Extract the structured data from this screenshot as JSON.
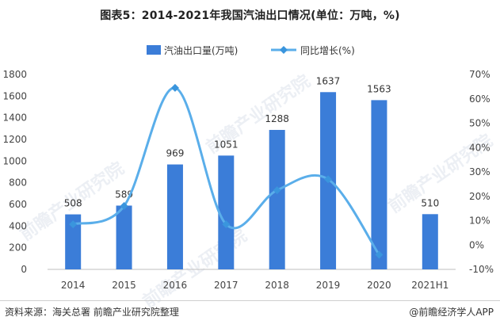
{
  "title": "图表5：2014-2021年我国汽油出口情况(单位：万吨，%)",
  "source": "资料来源：海关总署 前瞻产业研究院整理",
  "brand": "@前瞻经济学人APP",
  "watermark": "前瞻产业研究院",
  "colors": {
    "bar": "#3b7dd8",
    "line": "#5aaeea",
    "marker": "#3a95dd"
  },
  "chart_data": {
    "type": "bar+line",
    "categories": [
      "2014",
      "2015",
      "2016",
      "2017",
      "2018",
      "2019",
      "2020",
      "2021H1"
    ],
    "series": [
      {
        "name": "汽油出口量(万吨)",
        "type": "bar",
        "axis": "left",
        "values": [
          508,
          589,
          969,
          1051,
          1288,
          1637,
          1563,
          510
        ],
        "labels": [
          "508",
          "589",
          "969",
          "1051",
          "1288",
          "1637",
          "1563",
          "510"
        ]
      },
      {
        "name": "同比增长(%)",
        "type": "line",
        "axis": "right",
        "values": [
          8.5,
          16,
          64.5,
          8.5,
          22.5,
          27,
          -4,
          null
        ]
      }
    ],
    "left_axis": {
      "min": 0,
      "max": 1800,
      "ticks": [
        "0",
        "200",
        "400",
        "600",
        "800",
        "1000",
        "1200",
        "1400",
        "1600",
        "1800"
      ]
    },
    "right_axis": {
      "min": -10,
      "max": 70,
      "ticks": [
        "-10%",
        "0%",
        "10%",
        "20%",
        "30%",
        "40%",
        "50%",
        "60%",
        "70%"
      ]
    },
    "legend_position": "top-center",
    "grid": false
  }
}
